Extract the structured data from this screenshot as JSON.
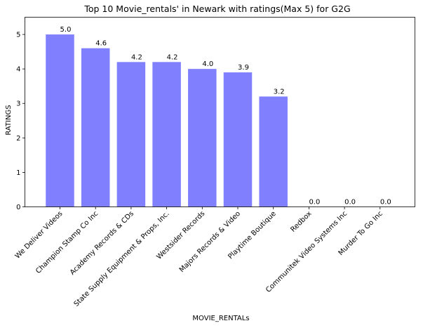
{
  "chart_data": {
    "type": "bar",
    "title": "Top 10 Movie_rentals' in Newark with ratings(Max 5) for G2G",
    "xlabel": "MOVIE_RENTALs",
    "ylabel": "RATINGS",
    "categories": [
      "We Deliver Videos",
      "Champion Stamp Co Inc",
      "Academy Records & CDs",
      "State Supply Equipment & Props, Inc.",
      "Westsider Records",
      "Majors Records & Video",
      "Playtime Boutique",
      "Redbox",
      "Communitek Video Systems Inc",
      "Murder To Go Inc"
    ],
    "values": [
      5.0,
      4.6,
      4.2,
      4.2,
      4.0,
      3.9,
      3.2,
      0.0,
      0.0,
      0.0
    ],
    "value_labels": [
      "5.0",
      "4.6",
      "4.2",
      "4.2",
      "4.0",
      "3.9",
      "3.2",
      "0.0",
      "0.0",
      "0.0"
    ],
    "ylim": [
      0,
      5.5
    ],
    "yticks": [
      "0",
      "1",
      "2",
      "3",
      "4",
      "5"
    ],
    "bar_color": "#8080ff",
    "grid": false,
    "legend": "none"
  }
}
